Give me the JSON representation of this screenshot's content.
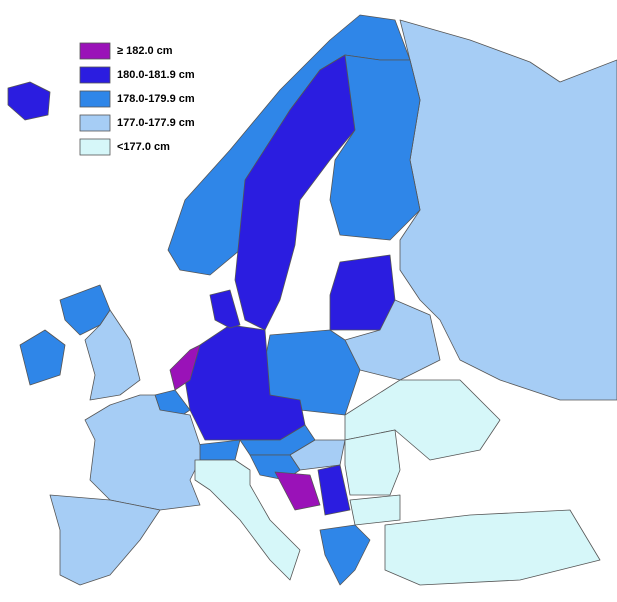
{
  "legend": {
    "items": [
      {
        "label": "≥ 182.0 cm",
        "color": "#9a12b8"
      },
      {
        "label": "180.0-181.9 cm",
        "color": "#2b1de0"
      },
      {
        "label": "178.0-179.9 cm",
        "color": "#2f86e8"
      },
      {
        "label": "177.0-177.9 cm",
        "color": "#a6cdf5"
      },
      {
        "label": "<177.0 cm",
        "color": "#d6f7f9"
      }
    ]
  }
}
